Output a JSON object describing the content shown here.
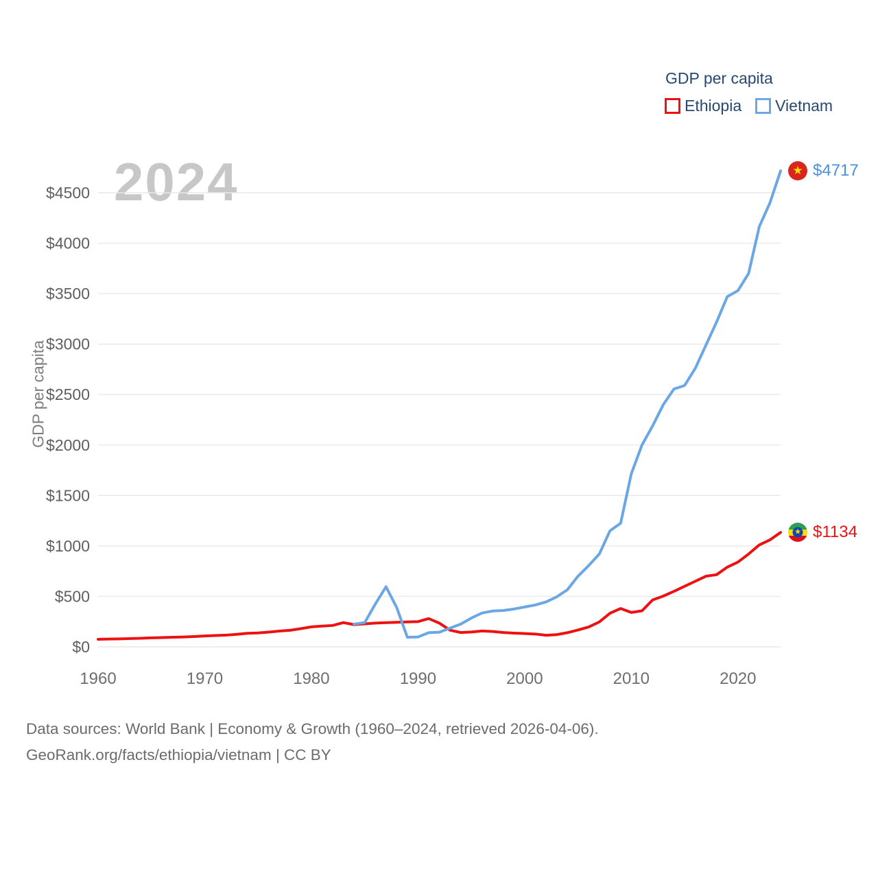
{
  "meta": {
    "year_watermark": "2024"
  },
  "legend": {
    "title": "GDP per capita",
    "items": [
      {
        "label": "Ethiopia"
      },
      {
        "label": "Vietnam"
      }
    ]
  },
  "axes": {
    "y_title": "GDP per capita"
  },
  "footer": {
    "line1": "Data sources: World Bank | Economy & Growth (1960–2024, retrieved 2026-04-06).",
    "line2": "GeoRank.org/facts/ethiopia/vietnam | CC BY"
  },
  "chart_data": {
    "type": "line",
    "title": "GDP per capita",
    "ylabel": "GDP per capita",
    "xlabel": "",
    "x_range": [
      1960,
      2024
    ],
    "ylim": [
      0,
      4750
    ],
    "x_ticks": [
      1960,
      1970,
      1980,
      1990,
      2000,
      2010,
      2020
    ],
    "y_ticks": [
      0,
      500,
      1000,
      1500,
      2000,
      2500,
      3000,
      3500,
      4000,
      4500
    ],
    "y_tick_prefix": "$",
    "grid": "horizontal-only",
    "grid_color": "#e8e8e8",
    "legend_position": "top-right",
    "series": [
      {
        "name": "Ethiopia",
        "color": "#ee1111",
        "label_color": "#ee1111",
        "end_label": "$1134",
        "flag_icon": "ethiopia-flag-icon",
        "start_year": 1960,
        "values": [
          75,
          77,
          79,
          82,
          85,
          89,
          92,
          95,
          98,
          102,
          108,
          112,
          116,
          124,
          134,
          138,
          146,
          156,
          164,
          180,
          198,
          206,
          212,
          240,
          220,
          228,
          235,
          240,
          243,
          247,
          250,
          280,
          235,
          165,
          142,
          147,
          157,
          152,
          142,
          136,
          132,
          127,
          115,
          121,
          140,
          167,
          197,
          247,
          333,
          380,
          341,
          357,
          465,
          503,
          550,
          600,
          650,
          700,
          715,
          790,
          840,
          920,
          1010,
          1060,
          1134
        ]
      },
      {
        "name": "Vietnam",
        "color": "#6aa7e4",
        "label_color": "#4a90e2",
        "end_label": "$4717",
        "flag_icon": "vietnam-flag-icon",
        "start_year": 1984,
        "values": [
          225,
          240,
          425,
          595,
          390,
          95,
          98,
          140,
          145,
          185,
          225,
          285,
          335,
          355,
          360,
          375,
          395,
          415,
          445,
          495,
          565,
          700,
          805,
          920,
          1150,
          1225,
          1715,
          2000,
          2190,
          2400,
          2555,
          2590,
          2760,
          2990,
          3220,
          3470,
          3530,
          3700,
          4164,
          4400,
          4717
        ]
      }
    ]
  }
}
